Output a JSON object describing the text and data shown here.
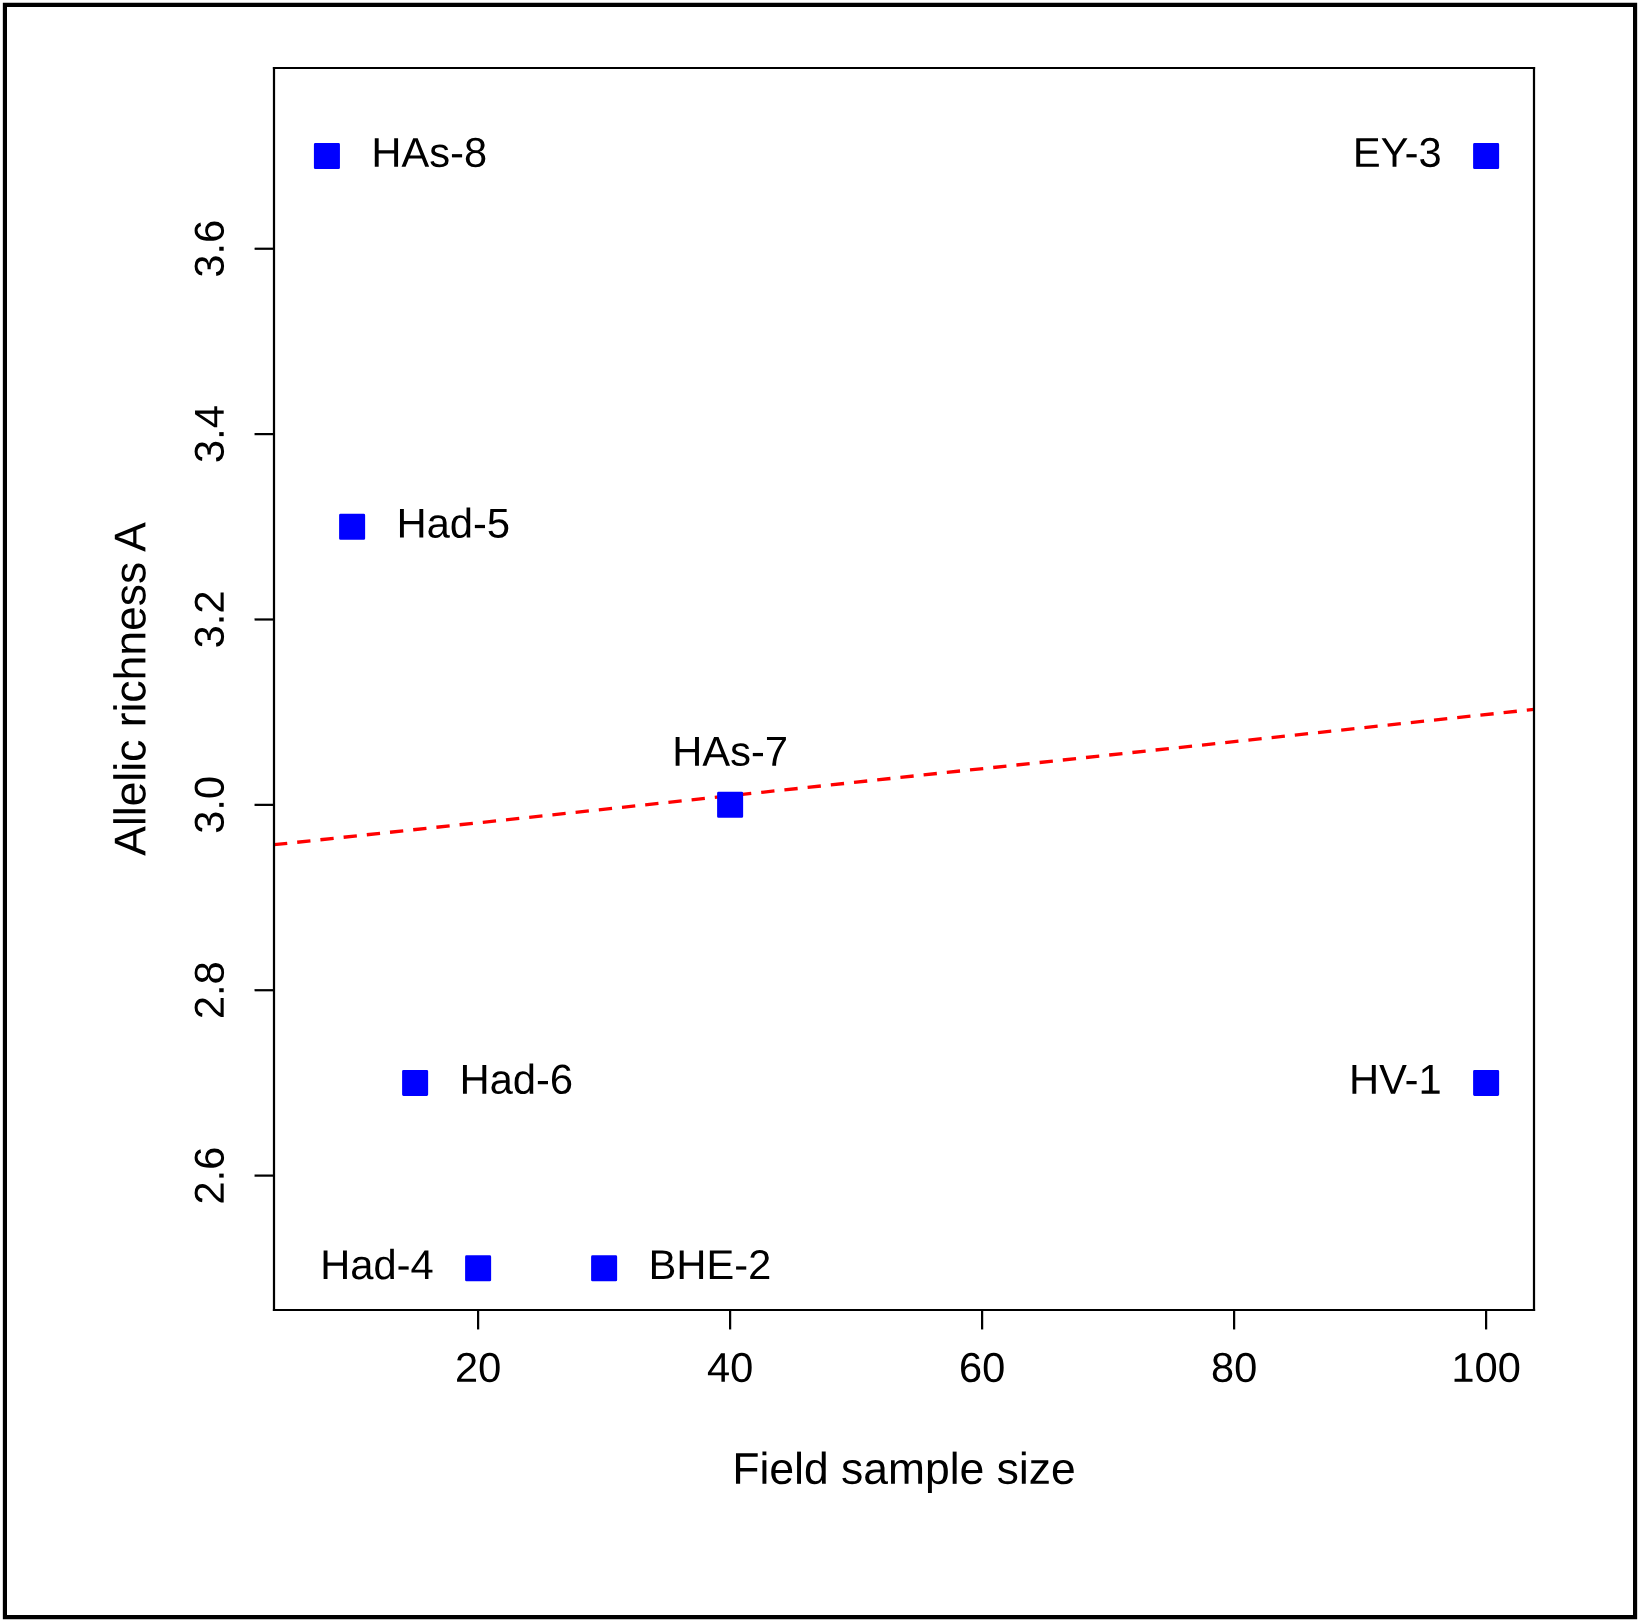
{
  "chart_data": {
    "type": "scatter",
    "xlabel": "Field sample size",
    "ylabel": "Allelic richness A",
    "marker": "square",
    "grid": false,
    "legend": false,
    "xlim": [
      3.8,
      103.8
    ],
    "ylim": [
      2.455,
      3.795
    ],
    "xticks": [
      20,
      40,
      60,
      80,
      100
    ],
    "yticks": [
      {
        "value": 2.6,
        "label": "2.6"
      },
      {
        "value": 2.8,
        "label": "2.8"
      },
      {
        "value": 3.0,
        "label": "3.0"
      },
      {
        "value": 3.2,
        "label": "3.2"
      },
      {
        "value": 3.4,
        "label": "3.4"
      },
      {
        "value": 3.6,
        "label": "3.6"
      }
    ],
    "series": [
      {
        "color": "#0000ff",
        "x": [
          8,
          10,
          15,
          20,
          30,
          40,
          100,
          100
        ],
        "values": [
          3.7,
          3.3,
          2.7,
          2.5,
          2.5,
          3.0,
          3.7,
          2.7
        ]
      },
      {
        "type": "line",
        "line_style": "dashed",
        "marker": "none",
        "color": "#ff0000",
        "x": [
          3.8,
          103.8
        ],
        "values": [
          2.957,
          3.103
        ]
      }
    ],
    "annotations": [
      {
        "text": "HAs-8",
        "x": 8,
        "y": 3.7
      },
      {
        "text": "Had-5",
        "x": 10,
        "y": 3.3
      },
      {
        "text": "Had-6",
        "x": 15,
        "y": 2.7
      },
      {
        "text": "Had-4",
        "x": 20,
        "y": 2.5
      },
      {
        "text": "BHE-2",
        "x": 30,
        "y": 2.5
      },
      {
        "text": "HAs-7",
        "x": 40,
        "y": 3.0
      },
      {
        "text": "EY-3",
        "x": 100,
        "y": 3.7
      },
      {
        "text": "HV-1",
        "x": 100,
        "y": 2.7
      }
    ]
  }
}
